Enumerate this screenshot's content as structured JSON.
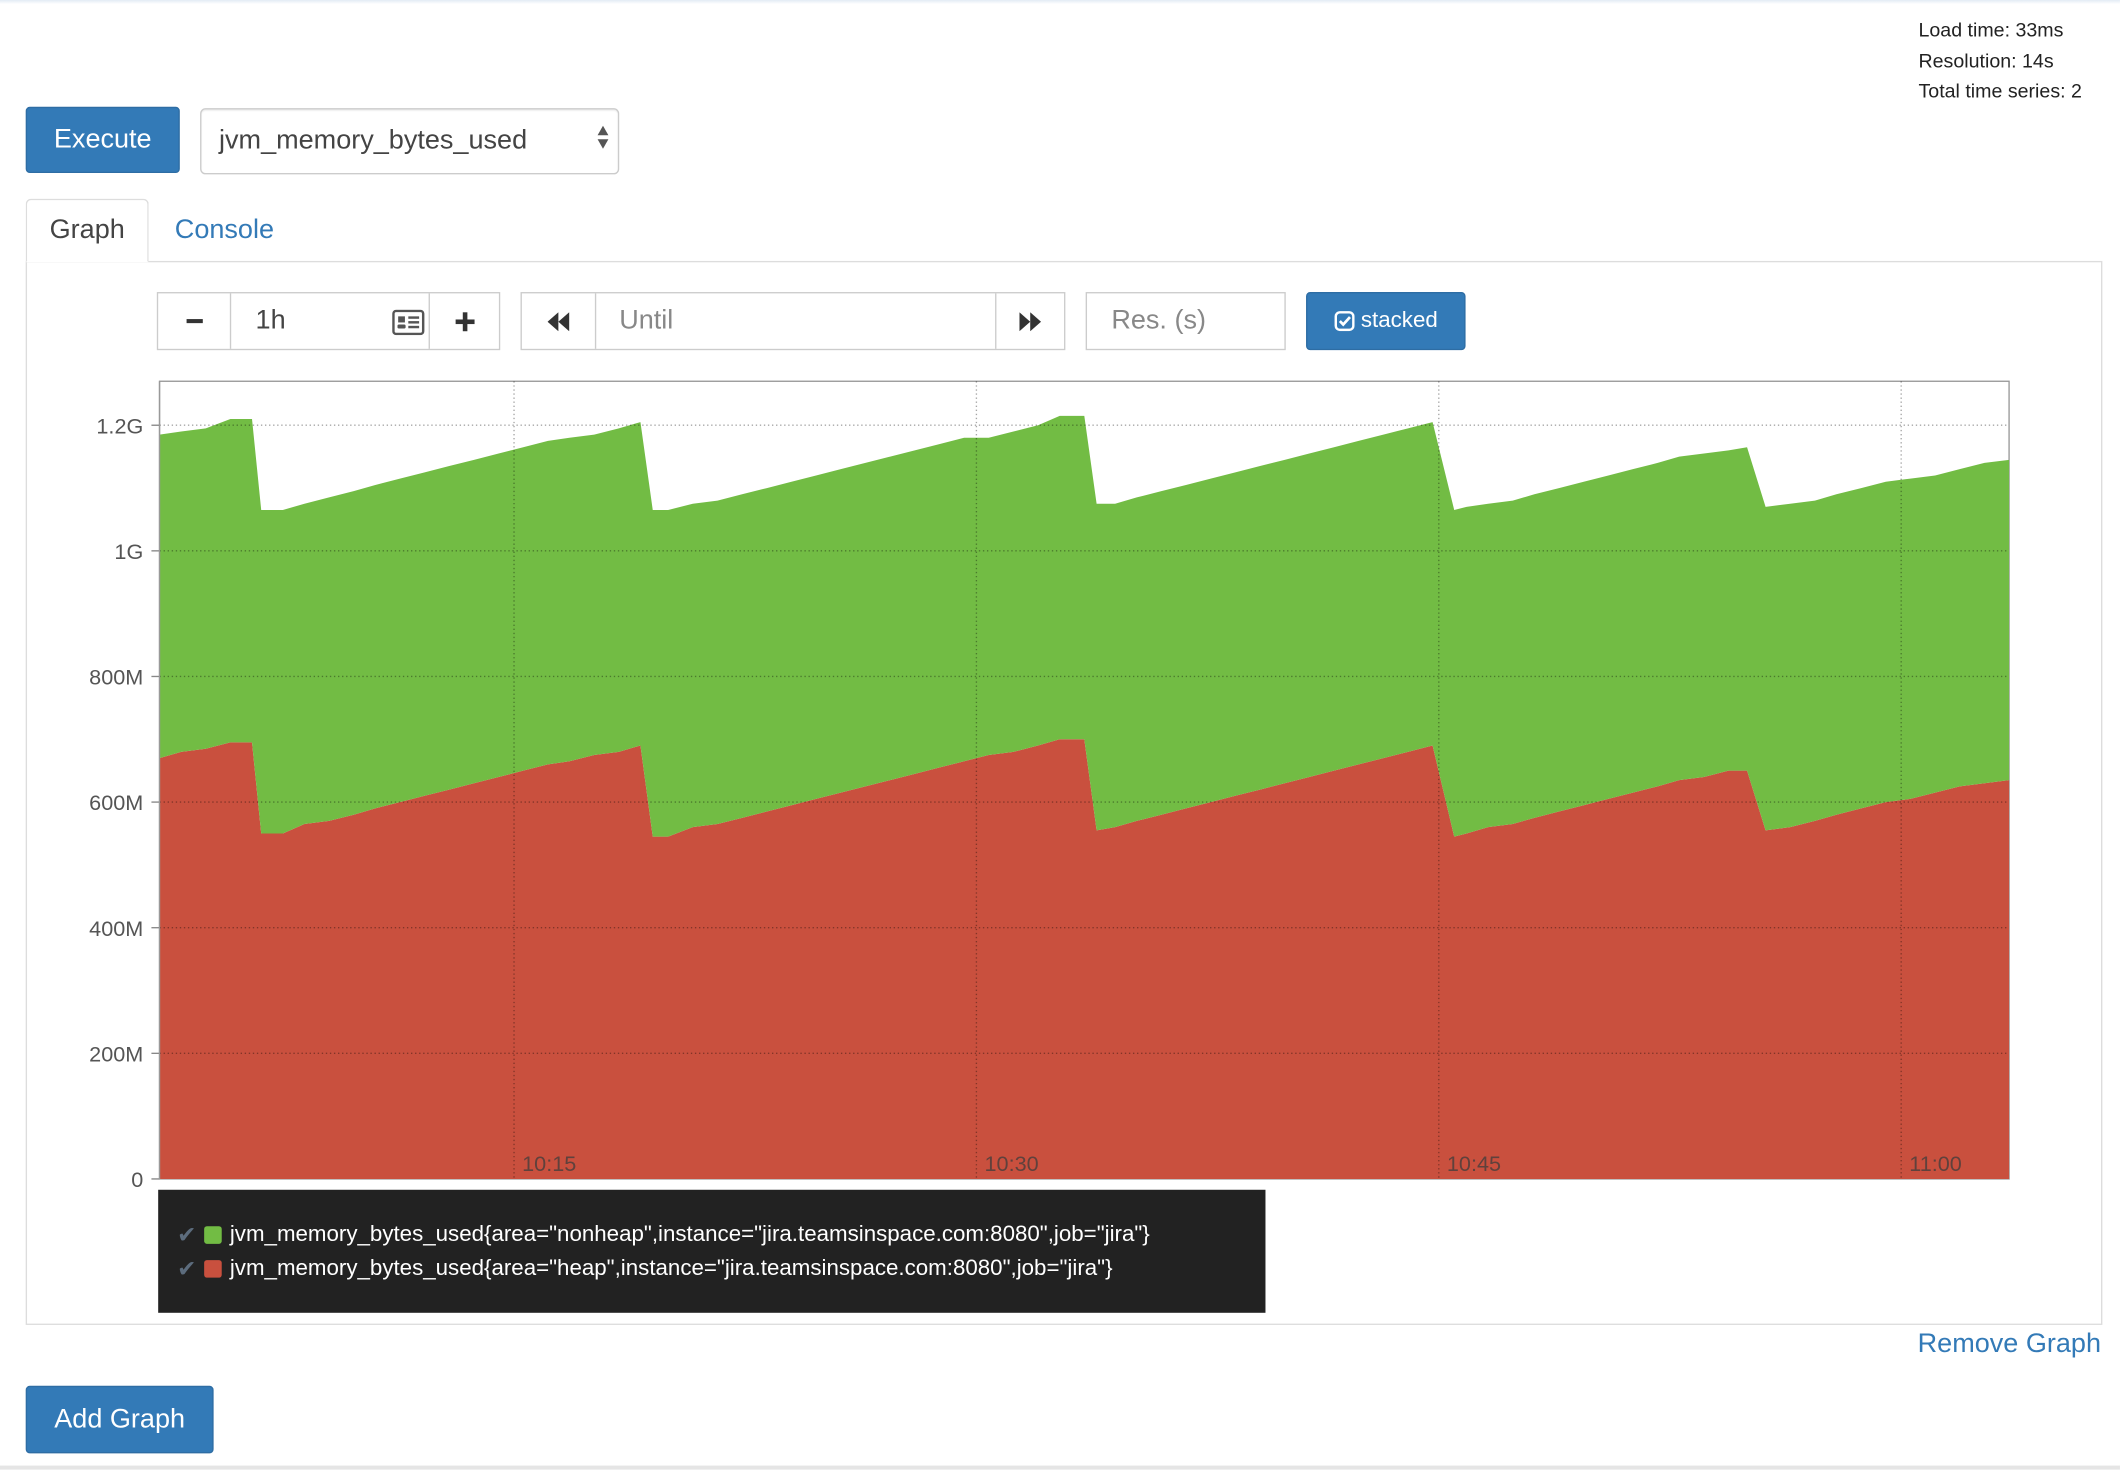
{
  "stats": {
    "load_time": "Load time: 33ms",
    "resolution": "Resolution: 14s",
    "total_series": "Total time series: 2"
  },
  "query": {
    "execute_label": "Execute",
    "selected_metric": "jvm_memory_bytes_used"
  },
  "tabs": {
    "graph": "Graph",
    "console": "Console"
  },
  "controls": {
    "minus_label": "−",
    "range_value": "1h",
    "plus_label": "+",
    "until_placeholder": "Until",
    "res_placeholder": "Res. (s)",
    "stacked_label": "stacked",
    "icons": {
      "minus": "minus-icon",
      "range": "calendar-icon",
      "plus": "plus-icon",
      "back": "fast-backward-icon",
      "forward": "fast-forward-icon",
      "stacked": "checkbox-checked-icon"
    }
  },
  "legend": {
    "items": [
      {
        "label": "jvm_memory_bytes_used{area=\"nonheap\",instance=\"jira.teamsinspace.com:8080\",job=\"jira\"}",
        "color": "#72bc44"
      },
      {
        "label": "jvm_memory_bytes_used{area=\"heap\",instance=\"jira.teamsinspace.com:8080\",job=\"jira\"}",
        "color": "#c9503e"
      }
    ]
  },
  "actions": {
    "remove_graph": "Remove Graph",
    "add_graph": "Add Graph"
  },
  "chart_data": {
    "type": "area",
    "stacked": true,
    "grid": true,
    "y_tick_labels": [
      "0",
      "200M",
      "400M",
      "600M",
      "800M",
      "1G",
      "1.2G"
    ],
    "y_tick_values": [
      0,
      200,
      400,
      600,
      800,
      1000,
      1200
    ],
    "y_unit": "M",
    "ylim": [
      0,
      1270
    ],
    "x_tick_labels": [
      "10:15",
      "10:30",
      "10:45",
      "11:00"
    ],
    "x_tick_values": [
      11.5,
      26.5,
      41.5,
      56.5
    ],
    "xlim": [
      0,
      60
    ],
    "x": [
      0,
      0.7,
      1.5,
      2.3,
      3,
      3.3,
      4,
      4.7,
      5.5,
      6.3,
      7,
      7.8,
      8.6,
      9.4,
      10.2,
      11,
      11.8,
      12.6,
      13.3,
      14.1,
      14.9,
      15.6,
      16,
      16.5,
      17.3,
      18.1,
      18.9,
      19.7,
      20.5,
      21.3,
      22.1,
      22.9,
      23.7,
      24.5,
      25.3,
      26.1,
      26.9,
      27.7,
      28.5,
      29.2,
      30,
      30.4,
      31,
      31.7,
      32.5,
      33.3,
      34.1,
      34.9,
      35.7,
      36.5,
      37.3,
      38.1,
      38.9,
      39.7,
      40.5,
      41.3,
      42,
      42.4,
      43.1,
      43.9,
      44.6,
      45.4,
      46.2,
      47,
      47.8,
      48.6,
      49.3,
      50.1,
      50.9,
      51.5,
      52.1,
      52.9,
      53.7,
      54.4,
      55.2,
      56,
      56.8,
      57.6,
      58.4,
      59.2,
      60
    ],
    "series": [
      {
        "name": "jvm_memory_bytes_used{area=\"heap\",instance=\"jira.teamsinspace.com:8080\",job=\"jira\"}",
        "color": "#c9503e",
        "values": [
          670,
          680,
          685,
          695,
          695,
          550,
          550,
          565,
          570,
          580,
          590,
          600,
          610,
          620,
          630,
          640,
          650,
          660,
          665,
          675,
          680,
          690,
          545,
          545,
          560,
          565,
          575,
          585,
          595,
          605,
          615,
          625,
          635,
          645,
          655,
          665,
          675,
          680,
          690,
          700,
          700,
          555,
          560,
          570,
          580,
          590,
          600,
          610,
          620,
          630,
          640,
          650,
          660,
          670,
          680,
          690,
          545,
          550,
          560,
          565,
          575,
          585,
          595,
          605,
          615,
          625,
          635,
          640,
          650,
          650,
          555,
          560,
          570,
          580,
          590,
          600,
          605,
          615,
          625,
          630,
          635
        ]
      },
      {
        "name": "jvm_memory_bytes_used{area=\"nonheap\",instance=\"jira.teamsinspace.com:8080\",job=\"jira\"}",
        "color": "#72bc44",
        "values": [
          515,
          510,
          510,
          515,
          515,
          515,
          515,
          510,
          515,
          515,
          515,
          515,
          515,
          515,
          515,
          515,
          515,
          515,
          515,
          510,
          515,
          515,
          520,
          520,
          515,
          515,
          515,
          515,
          515,
          515,
          515,
          515,
          515,
          515,
          515,
          515,
          505,
          510,
          510,
          515,
          515,
          520,
          515,
          515,
          515,
          515,
          515,
          515,
          515,
          515,
          515,
          515,
          515,
          515,
          515,
          515,
          520,
          520,
          515,
          515,
          515,
          515,
          515,
          515,
          515,
          515,
          515,
          515,
          510,
          515,
          515,
          515,
          510,
          510,
          510,
          510,
          510,
          505,
          505,
          510,
          510
        ]
      }
    ]
  }
}
